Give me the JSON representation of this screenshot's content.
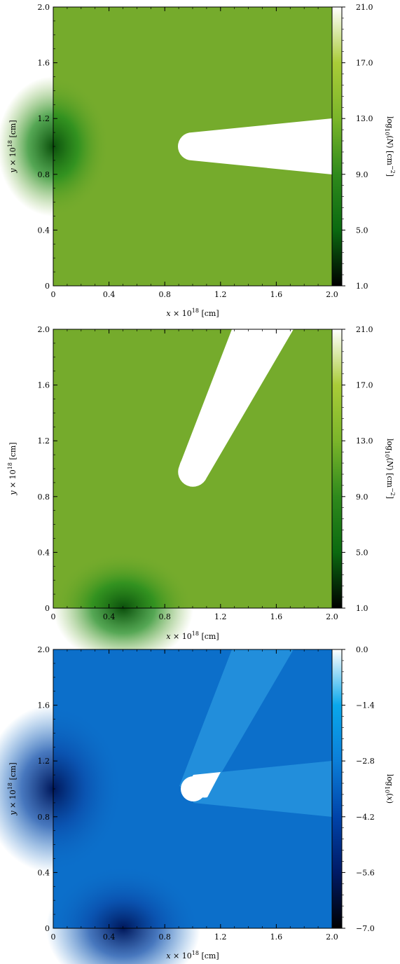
{
  "chart_data": [
    {
      "type": "heatmap",
      "panel": "top",
      "xlabel": "x × 10^18 [cm]",
      "ylabel": "y × 10^18 [cm]",
      "xlim": [
        0,
        2.0
      ],
      "ylim": [
        0,
        2.0
      ],
      "x_ticks": [
        "0",
        "0.4",
        "0.8",
        "1.2",
        "1.6",
        "2.0"
      ],
      "y_ticks": [
        "0",
        "0.4",
        "0.8",
        "1.2",
        "1.6",
        "2.0"
      ],
      "colorbar": {
        "label": "log10(N) [cm^-2]",
        "range": [
          1.0,
          21.0
        ],
        "ticks": [
          "1.0",
          "5.0",
          "9.0",
          "13.0",
          "17.0",
          "21.0"
        ],
        "colormap": [
          "#000000",
          "#0b6a10",
          "#2f8a1c",
          "#7bb52a",
          "#a9cc38",
          "#ffffff"
        ]
      },
      "field": {
        "background_color": "#75ab2c",
        "sources": [
          {
            "x": 0.0,
            "y": 1.0,
            "description": "minimum"
          }
        ],
        "shadow": {
          "tip": [
            1.0,
            1.0
          ],
          "end_upper": [
            2.0,
            1.2
          ],
          "end_lower": [
            2.0,
            0.8
          ],
          "radius": 0.1
        }
      }
    },
    {
      "type": "heatmap",
      "panel": "middle",
      "xlabel": "x × 10^18 [cm]",
      "ylabel": "y × 10^18 [cm]",
      "xlim": [
        0,
        2.0
      ],
      "ylim": [
        0,
        2.0
      ],
      "x_ticks": [
        "0",
        "0.4",
        "0.8",
        "1.2",
        "1.6",
        "2.0"
      ],
      "y_ticks": [
        "0",
        "0.4",
        "0.8",
        "1.2",
        "1.6",
        "2.0"
      ],
      "colorbar": {
        "label": "log10(N) [cm^-2]",
        "range": [
          1.0,
          21.0
        ],
        "ticks": [
          "1.0",
          "5.0",
          "9.0",
          "13.0",
          "17.0",
          "21.0"
        ],
        "colormap": [
          "#000000",
          "#0b6a10",
          "#2f8a1c",
          "#7bb52a",
          "#a9cc38",
          "#ffffff"
        ]
      },
      "field": {
        "background_color": "#75ab2c",
        "sources": [
          {
            "x": 0.5,
            "y": 0.0,
            "description": "minimum"
          }
        ],
        "shadow": {
          "tip": [
            1.0,
            1.0
          ],
          "end_upper": [
            1.3,
            2.0
          ],
          "end_lower": [
            1.7,
            2.0
          ],
          "radius": 0.1
        }
      }
    },
    {
      "type": "heatmap",
      "panel": "bottom",
      "xlabel": "x × 10^18 [cm]",
      "ylabel": "y × 10^18 [cm]",
      "xlim": [
        0,
        2.0
      ],
      "ylim": [
        0,
        2.0
      ],
      "x_ticks": [
        "0",
        "0.4",
        "0.8",
        "1.2",
        "1.6",
        "2.0"
      ],
      "y_ticks": [
        "0",
        "0.4",
        "0.8",
        "1.2",
        "1.6",
        "2.0"
      ],
      "colorbar": {
        "label": "log10(x)",
        "range": [
          -7.0,
          0.0
        ],
        "ticks": [
          "−7.0",
          "−5.6",
          "−4.2",
          "−2.8",
          "−1.4",
          "0.0"
        ],
        "colormap": [
          "#000000",
          "#001a66",
          "#0044aa",
          "#0b7ed8",
          "#0aa8ec",
          "#ffffff"
        ]
      },
      "field": {
        "background_color": "#0c6fca",
        "sources": [
          {
            "x": 0.0,
            "y": 1.0,
            "description": "minimum"
          },
          {
            "x": 0.5,
            "y": 0.0,
            "description": "minimum"
          }
        ],
        "clump": {
          "x": 1.0,
          "y": 1.0,
          "radius": 0.1
        },
        "shadows": [
          {
            "tip": [
              1.0,
              1.0
            ],
            "end_upper": [
              2.0,
              1.2
            ],
            "end_lower": [
              2.0,
              0.8
            ]
          },
          {
            "tip": [
              1.0,
              1.0
            ],
            "end_upper": [
              1.3,
              2.0
            ],
            "end_lower": [
              1.7,
              2.0
            ]
          }
        ]
      }
    }
  ]
}
